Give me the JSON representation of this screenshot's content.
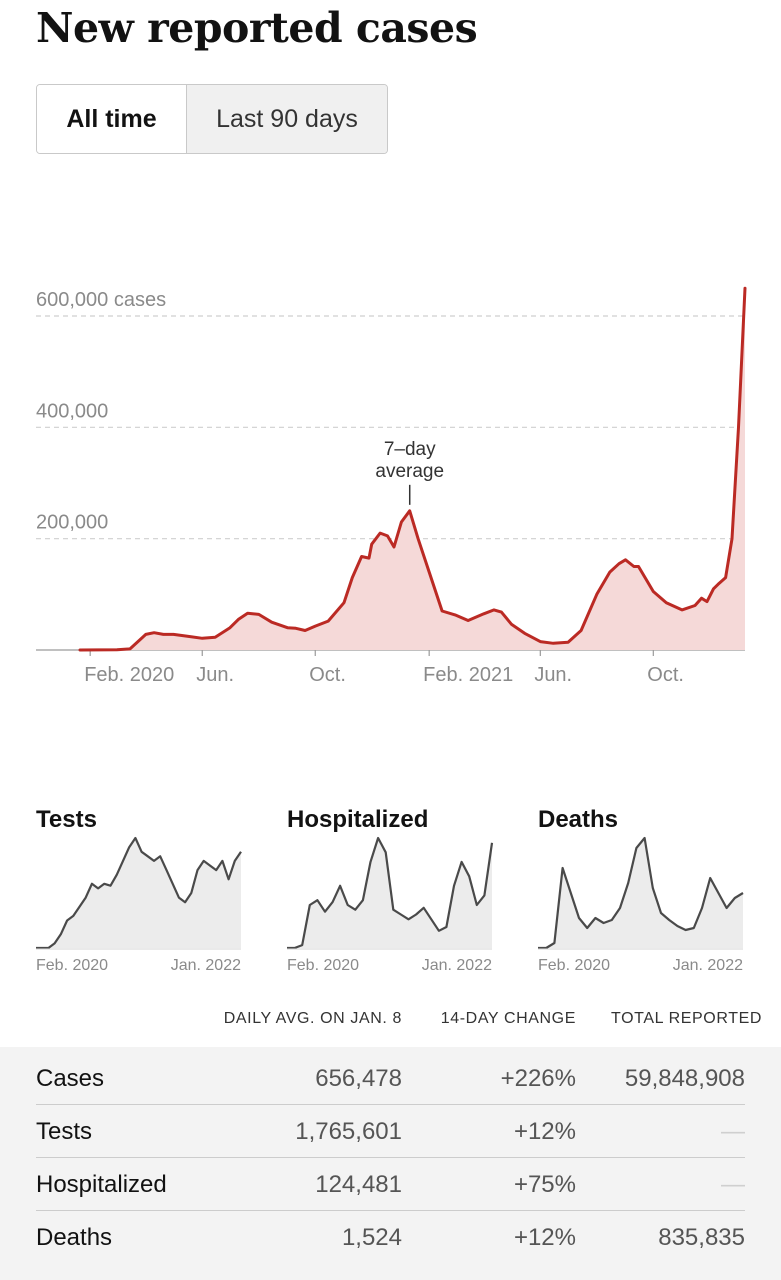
{
  "page": {
    "title": "New reported cases"
  },
  "toggle": {
    "options": [
      "All time",
      "Last 90 days"
    ],
    "selected": "All time"
  },
  "chart_data": {
    "type": "area",
    "title": "New reported cases",
    "y_tick_labels": [
      "600,000 cases",
      "400,000",
      "200,000"
    ],
    "y_ticks": [
      600000,
      400000,
      200000
    ],
    "ylim": [
      0,
      600000
    ],
    "x_tick_labels": [
      "Feb. 2020",
      "Jun.",
      "Oct.",
      "Feb. 2021",
      "Jun.",
      "Oct."
    ],
    "x_ticks": [
      "2020-02-01",
      "2020-06-01",
      "2020-10-01",
      "2021-02-01",
      "2021-06-01",
      "2021-10-01"
    ],
    "xlim": [
      "2020-01-21",
      "2022-01-08"
    ],
    "grid": true,
    "annotation": {
      "text_lines": [
        "7–day",
        "average"
      ],
      "x": "2021-01-11",
      "y": 250000
    },
    "colors": {
      "line": "#bb2a24",
      "fill": "#f5d9d8"
    },
    "series": [
      {
        "x": [
          "2020-01-21",
          "2020-03-01",
          "2020-03-15",
          "2020-04-01",
          "2020-04-10",
          "2020-04-20",
          "2020-05-01",
          "2020-05-15",
          "2020-06-01",
          "2020-06-15",
          "2020-07-01",
          "2020-07-10",
          "2020-07-20",
          "2020-08-01",
          "2020-08-15",
          "2020-09-01",
          "2020-09-10",
          "2020-09-20",
          "2020-10-01",
          "2020-10-15",
          "2020-11-01",
          "2020-11-10",
          "2020-11-20",
          "2020-11-28",
          "2020-12-01",
          "2020-12-10",
          "2020-12-18",
          "2020-12-25",
          "2021-01-02",
          "2021-01-11",
          "2021-01-20",
          "2021-02-01",
          "2021-02-15",
          "2021-03-01",
          "2021-03-15",
          "2021-04-01",
          "2021-04-12",
          "2021-04-20",
          "2021-05-01",
          "2021-05-15",
          "2021-06-01",
          "2021-06-15",
          "2021-07-01",
          "2021-07-15",
          "2021-08-01",
          "2021-08-15",
          "2021-08-25",
          "2021-09-01",
          "2021-09-10",
          "2021-09-15",
          "2021-10-01",
          "2021-10-15",
          "2021-11-01",
          "2021-11-15",
          "2021-11-22",
          "2021-11-28",
          "2021-12-05",
          "2021-12-10",
          "2021-12-18",
          "2021-12-25",
          "2022-01-01",
          "2022-01-08"
        ],
        "y": [
          0,
          500,
          2000,
          28000,
          31000,
          28000,
          28000,
          25000,
          21000,
          23000,
          40000,
          55000,
          66000,
          64000,
          50000,
          40000,
          39000,
          35000,
          43000,
          52000,
          85000,
          130000,
          168000,
          165000,
          190000,
          210000,
          205000,
          185000,
          230000,
          250000,
          200000,
          140000,
          70000,
          63000,
          53000,
          65000,
          72000,
          68000,
          46000,
          30000,
          15000,
          12000,
          14000,
          35000,
          100000,
          140000,
          155000,
          162000,
          150000,
          150000,
          105000,
          85000,
          72000,
          80000,
          93000,
          87000,
          110000,
          118000,
          130000,
          200000,
          400000,
          650000
        ]
      }
    ]
  },
  "mini_charts": [
    {
      "title": "Tests",
      "x_labels": [
        "Feb. 2020",
        "Jan. 2022"
      ],
      "values": [
        0,
        0,
        0,
        5,
        15,
        30,
        35,
        45,
        55,
        70,
        65,
        70,
        68,
        80,
        95,
        110,
        120,
        105,
        100,
        95,
        100,
        85,
        70,
        55,
        50,
        60,
        85,
        95,
        90,
        85,
        95,
        75,
        95,
        105
      ]
    },
    {
      "title": "Hospitalized",
      "x_labels": [
        "Feb. 2020",
        "Jan. 2022"
      ],
      "values": [
        0,
        0,
        3,
        45,
        50,
        38,
        48,
        65,
        45,
        40,
        50,
        90,
        115,
        100,
        40,
        35,
        30,
        35,
        42,
        30,
        18,
        22,
        65,
        90,
        75,
        45,
        55,
        110
      ]
    },
    {
      "title": "Deaths",
      "x_labels": [
        "Feb. 2020",
        "Jan. 2022"
      ],
      "values": [
        0,
        0,
        5,
        80,
        55,
        30,
        20,
        30,
        25,
        28,
        40,
        65,
        100,
        110,
        60,
        35,
        28,
        22,
        18,
        20,
        40,
        70,
        55,
        40,
        50,
        55
      ]
    }
  ],
  "table": {
    "headers": [
      "DAILY AVG. ON JAN. 8",
      "14-DAY CHANGE",
      "TOTAL REPORTED"
    ],
    "rows": [
      {
        "label": "Cases",
        "daily_avg": "656,478",
        "change": "+226%",
        "total": "59,848,908"
      },
      {
        "label": "Tests",
        "daily_avg": "1,765,601",
        "change": "+12%",
        "total": "—"
      },
      {
        "label": "Hospitalized",
        "daily_avg": "124,481",
        "change": "+75%",
        "total": "—"
      },
      {
        "label": "Deaths",
        "daily_avg": "1,524",
        "change": "+12%",
        "total": "835,835"
      }
    ]
  }
}
